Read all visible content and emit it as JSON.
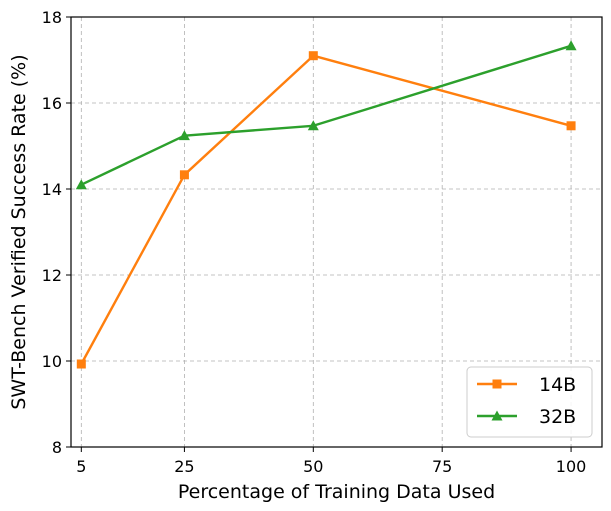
{
  "chart_data": {
    "type": "line",
    "xlabel": "Percentage of Training Data Used",
    "ylabel": "SWT-Bench Verified Success Rate (%)",
    "x": [
      5,
      25,
      50,
      75,
      100
    ],
    "x_ticks": [
      "5",
      "25",
      "50",
      "75",
      "100"
    ],
    "y_ticks": [
      "8",
      "10",
      "12",
      "14",
      "16",
      "18"
    ],
    "xlim": [
      3,
      106
    ],
    "ylim": [
      8,
      18
    ],
    "grid": true,
    "legend_position": "lower-right",
    "series": [
      {
        "name": "14B",
        "color": "#ff7f0e",
        "marker": "square",
        "points": [
          {
            "x": 5,
            "y": 9.93
          },
          {
            "x": 25,
            "y": 14.33
          },
          {
            "x": 50,
            "y": 17.1
          },
          {
            "x": 100,
            "y": 15.47
          }
        ]
      },
      {
        "name": "32B",
        "color": "#2ca02c",
        "marker": "triangle",
        "points": [
          {
            "x": 5,
            "y": 14.1
          },
          {
            "x": 25,
            "y": 15.24
          },
          {
            "x": 50,
            "y": 15.47
          },
          {
            "x": 100,
            "y": 17.33
          }
        ]
      }
    ]
  }
}
